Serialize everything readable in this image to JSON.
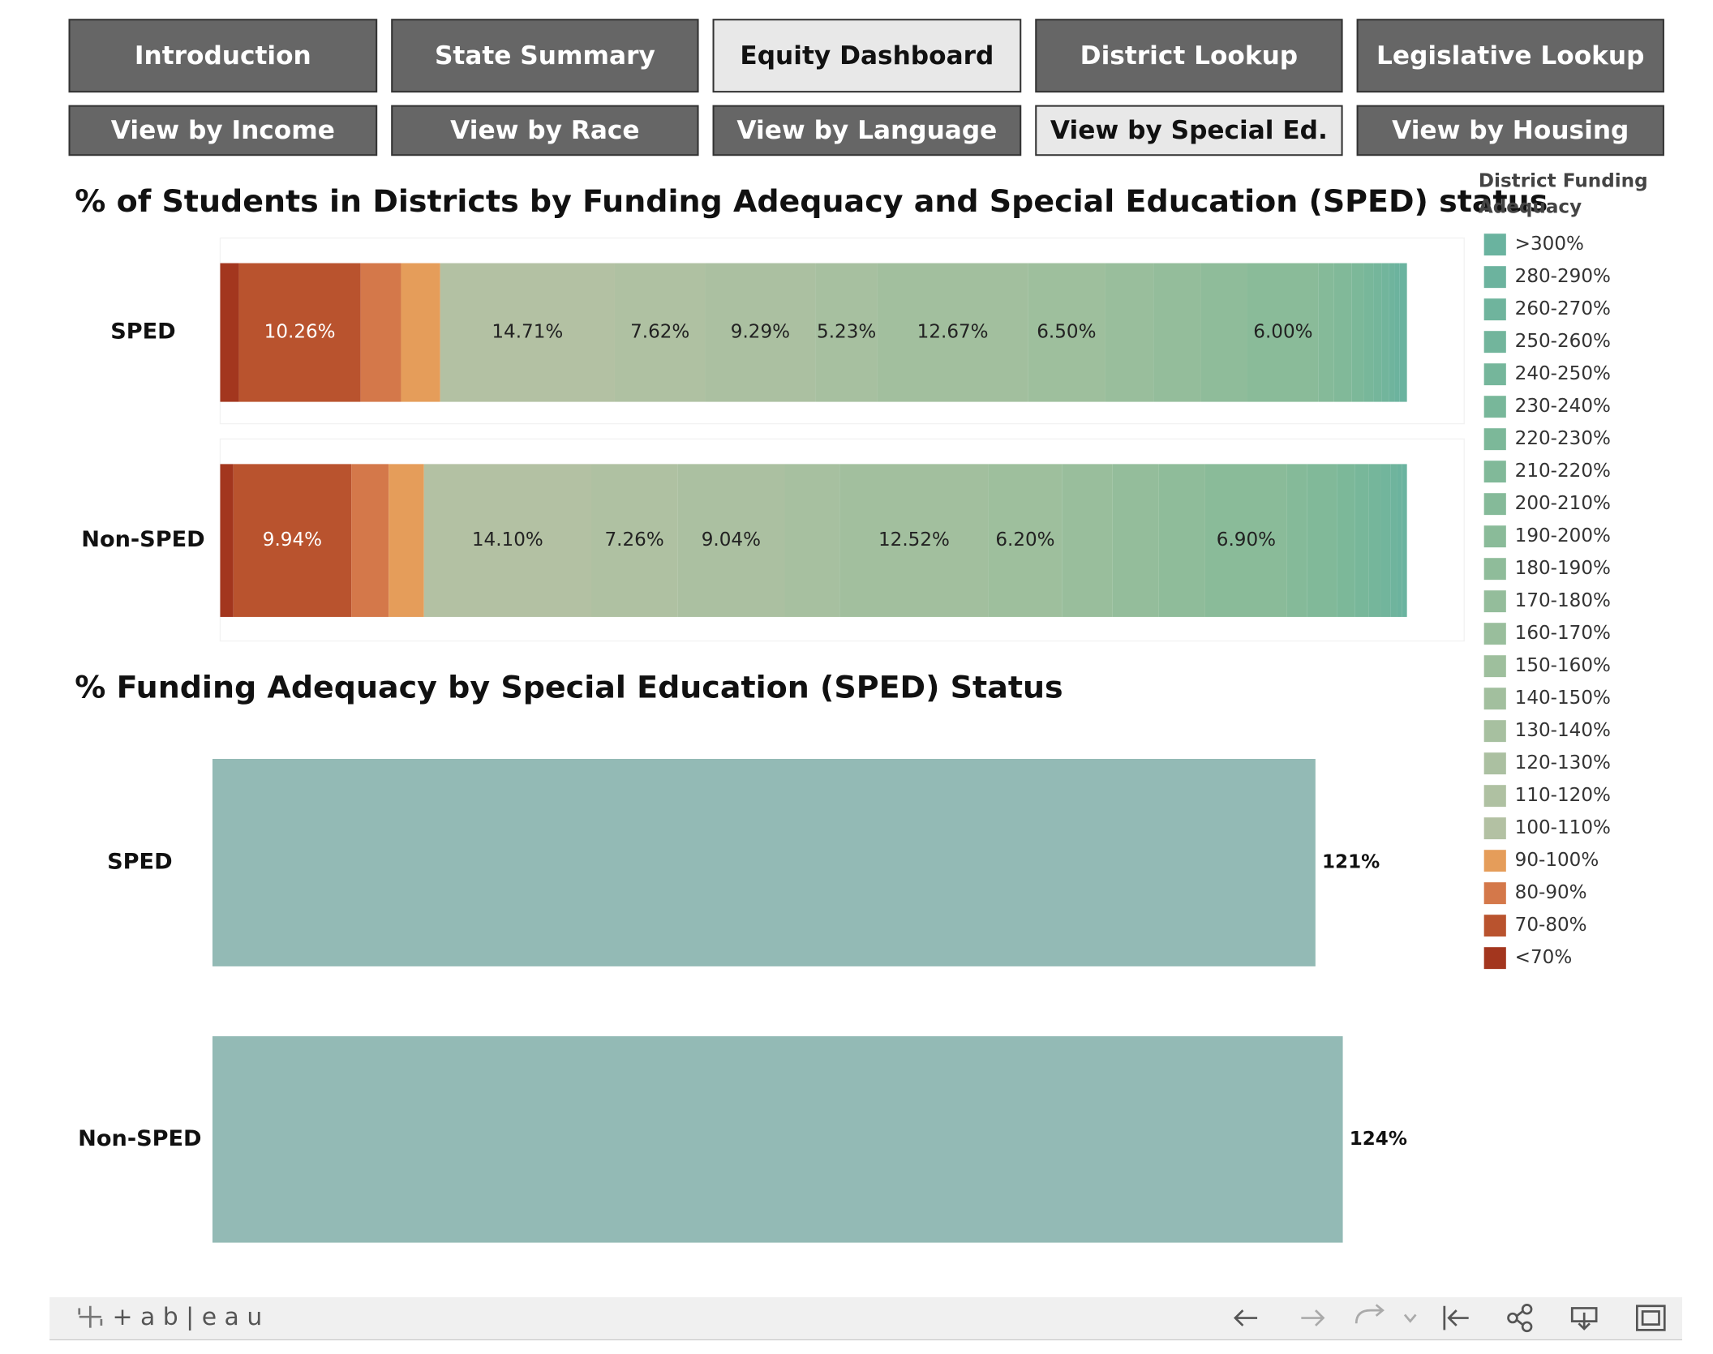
{
  "nav": {
    "rows": [
      [
        {
          "label": "Introduction",
          "selected": false
        },
        {
          "label": "State Summary",
          "selected": false
        },
        {
          "label": "Equity Dashboard",
          "selected": true
        },
        {
          "label": "District Lookup",
          "selected": false
        },
        {
          "label": "Legislative Lookup",
          "selected": false
        }
      ],
      [
        {
          "label": "View by Income",
          "selected": false
        },
        {
          "label": "View by Race",
          "selected": false
        },
        {
          "label": "View by Language",
          "selected": false
        },
        {
          "label": "View by Special Ed.",
          "selected": true
        },
        {
          "label": "View by Housing",
          "selected": false
        }
      ]
    ]
  },
  "chart_data": [
    {
      "type": "stacked_bar",
      "title": "% of Students in Districts by Funding Adequacy and Special Education (SPED) status",
      "legend_title": "District Funding Adequacy",
      "categories": [
        "SPED",
        "Non-SPED"
      ],
      "xlim": [
        0,
        100
      ],
      "series": [
        {
          "name": ">300%",
          "color": "#6ab39f",
          "values": [
            0.64,
            0.4
          ],
          "value_labels": [
            null,
            null
          ]
        },
        {
          "name": "280-290%",
          "color": "#6cb39e",
          "values": [
            0.4,
            0.4
          ],
          "value_labels": [
            null,
            null
          ]
        },
        {
          "name": "260-270%",
          "color": "#6fb49d",
          "values": [
            0.5,
            0.6
          ],
          "value_labels": [
            null,
            null
          ]
        },
        {
          "name": "250-260%",
          "color": "#72b59c",
          "values": [
            0.6,
            0.8
          ],
          "value_labels": [
            null,
            null
          ]
        },
        {
          "name": "240-250%",
          "color": "#75b69b",
          "values": [
            0.7,
            1.0
          ],
          "value_labels": [
            null,
            null
          ]
        },
        {
          "name": "230-240%",
          "color": "#78b79a",
          "values": [
            0.8,
            1.2
          ],
          "value_labels": [
            null,
            null
          ]
        },
        {
          "name": "220-230%",
          "color": "#7cb899",
          "values": [
            1.0,
            1.5
          ],
          "value_labels": [
            null,
            null
          ]
        },
        {
          "name": "210-220%",
          "color": "#81b999",
          "values": [
            1.5,
            2.5
          ],
          "value_labels": [
            null,
            null
          ]
        },
        {
          "name": "200-210%",
          "color": "#85ba99",
          "values": [
            1.3,
            1.7
          ],
          "value_labels": [
            null,
            null
          ]
        },
        {
          "name": "190-200%",
          "color": "#8abb99",
          "values": [
            6.0,
            6.9
          ],
          "value_labels": [
            "6.00%",
            "6.90%"
          ]
        },
        {
          "name": "180-190%",
          "color": "#8fbc9a",
          "values": [
            3.9,
            3.9
          ],
          "value_labels": [
            null,
            null
          ]
        },
        {
          "name": "170-180%",
          "color": "#94bd9b",
          "values": [
            4.0,
            3.9
          ],
          "value_labels": [
            null,
            null
          ]
        },
        {
          "name": "160-170%",
          "color": "#99be9c",
          "values": [
            4.1,
            4.27
          ],
          "value_labels": [
            null,
            null
          ]
        },
        {
          "name": "150-160%",
          "color": "#9ebf9d",
          "values": [
            6.5,
            6.2
          ],
          "value_labels": [
            "6.50%",
            "6.20%"
          ]
        },
        {
          "name": "140-150%",
          "color": "#a2bf9e",
          "values": [
            12.67,
            12.52
          ],
          "value_labels": [
            "12.67%",
            "12.52%"
          ]
        },
        {
          "name": "130-140%",
          "color": "#a7c0a0",
          "values": [
            5.23,
            4.64
          ],
          "value_labels": [
            "5.23%",
            null
          ]
        },
        {
          "name": "120-130%",
          "color": "#abc0a1",
          "values": [
            9.29,
            9.04
          ],
          "value_labels": [
            "9.29%",
            "9.04%"
          ]
        },
        {
          "name": "110-120%",
          "color": "#afc1a2",
          "values": [
            7.62,
            7.26
          ],
          "value_labels": [
            "7.62%",
            "7.26%"
          ]
        },
        {
          "name": "100-110%",
          "color": "#b3c1a3",
          "values": [
            14.71,
            14.1
          ],
          "value_labels": [
            "14.71%",
            "14.10%"
          ]
        },
        {
          "name": "90-100%",
          "color": "#e59d5a",
          "values": [
            3.3,
            2.97
          ],
          "value_labels": [
            null,
            null
          ]
        },
        {
          "name": "80-90%",
          "color": "#d4784a",
          "values": [
            3.4,
            3.15
          ],
          "value_labels": [
            null,
            null
          ]
        },
        {
          "name": "70-80%",
          "color": "#b9532e",
          "values": [
            10.26,
            9.94
          ],
          "value_labels": [
            "10.26%",
            "9.94%"
          ]
        },
        {
          "name": "<70%",
          "color": "#a3361e",
          "values": [
            1.58,
            1.11
          ],
          "value_labels": [
            null,
            null
          ]
        }
      ]
    },
    {
      "type": "hbar",
      "title": "% Funding Adequacy by Special Education (SPED) Status",
      "categories": [
        "SPED",
        "Non-SPED"
      ],
      "values": [
        121,
        124
      ],
      "value_labels": [
        "121%",
        "124%"
      ],
      "color": "#93bab5",
      "xlim": [
        0,
        130
      ]
    }
  ],
  "footer": {
    "brand": "+ a b | e a u"
  }
}
